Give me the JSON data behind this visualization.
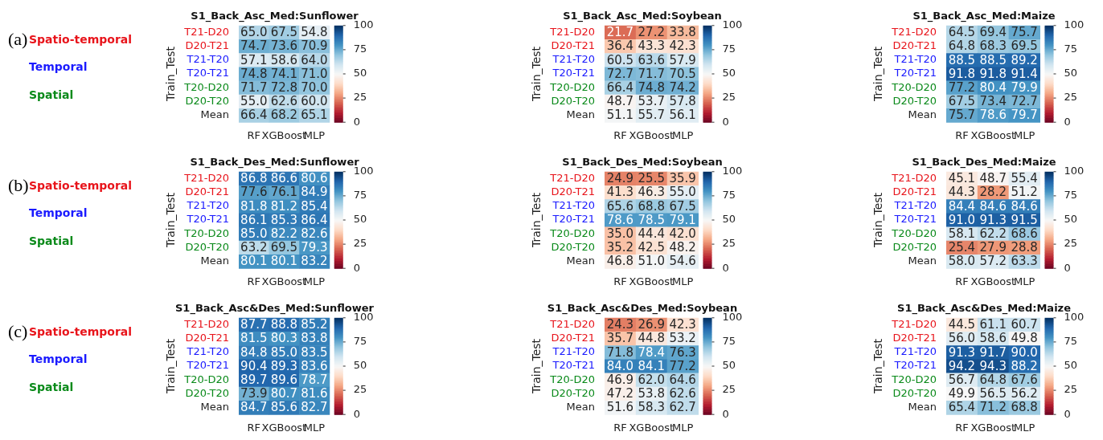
{
  "chart_data": [
    {
      "type": "heatmap",
      "title": "S1_Back_Asc_Med:Sunflower",
      "ylabel": "Train_Test",
      "annotations": [
        "(a)",
        "Spatio-temporal",
        "Temporal",
        "Spatial"
      ],
      "categories": [
        "RF",
        "XGBoost",
        "MLP"
      ],
      "y_categories": [
        "T21-D20",
        "D20-T21",
        "T21-T20",
        "T20-T21",
        "T20-D20",
        "D20-T20",
        "Mean"
      ],
      "clim": [
        0,
        100
      ],
      "cticks": [
        0,
        25,
        50,
        75,
        100
      ],
      "cells": [
        [
          65.0,
          67.5,
          54.8
        ],
        [
          74.7,
          73.6,
          70.9
        ],
        [
          57.1,
          58.6,
          64.0
        ],
        [
          74.8,
          74.1,
          71.0
        ],
        [
          71.7,
          72.8,
          70.0
        ],
        [
          55.0,
          62.6,
          60.0
        ],
        [
          66.4,
          68.2,
          65.1
        ]
      ],
      "cell_labels": [
        [
          "65.0",
          "67.5",
          "54.8"
        ],
        [
          "74.7",
          "73.6",
          "70.9"
        ],
        [
          "57.1",
          "58.6",
          "64.0"
        ],
        [
          "74.8",
          "74.1",
          "71.0"
        ],
        [
          "71.7",
          "72.8",
          "70.0"
        ],
        [
          "55.0",
          "62.6",
          "60.0"
        ],
        [
          "66.4",
          "68.2",
          "65.1"
        ]
      ]
    },
    {
      "type": "heatmap",
      "title": "S1_Back_Asc_Med:Soybean",
      "ylabel": "Train_Test",
      "categories": [
        "RF",
        "XGBoost",
        "MLP"
      ],
      "y_categories": [
        "T21-D20",
        "D20-T21",
        "T21-T20",
        "T20-T21",
        "T20-D20",
        "D20-T20",
        "Mean"
      ],
      "clim": [
        0,
        100
      ],
      "cticks": [
        0,
        25,
        50,
        75,
        100
      ],
      "cells": [
        [
          21.7,
          27.2,
          33.8
        ],
        [
          36.4,
          43.3,
          42.3
        ],
        [
          60.5,
          63.6,
          57.9
        ],
        [
          72.7,
          71.7,
          70.5
        ],
        [
          66.4,
          74.8,
          74.2
        ],
        [
          48.7,
          53.7,
          57.8
        ],
        [
          51.1,
          55.7,
          56.1
        ]
      ],
      "cell_labels": [
        [
          "21.7",
          "27.2",
          "33.8"
        ],
        [
          "36.4",
          "43.3",
          "42.3"
        ],
        [
          "60.5",
          "63.6",
          "57.9"
        ],
        [
          "72.7",
          "71.7",
          "70.5"
        ],
        [
          "66.4",
          "74.8",
          "74.2"
        ],
        [
          "48.7",
          "53.7",
          "57.8"
        ],
        [
          "51.1",
          "55.7",
          "56.1"
        ]
      ]
    },
    {
      "type": "heatmap",
      "title": "S1_Back_Asc_Med:Maize",
      "ylabel": "Train_Test",
      "categories": [
        "RF",
        "XGBoost",
        "MLP"
      ],
      "y_categories": [
        "T21-D20",
        "D20-T21",
        "T21-T20",
        "T20-T21",
        "T20-D20",
        "D20-T20",
        "Mean"
      ],
      "clim": [
        0,
        100
      ],
      "cticks": [
        0,
        25,
        50,
        75,
        100
      ],
      "cells": [
        [
          64.5,
          69.4,
          75.7
        ],
        [
          64.8,
          68.3,
          69.5
        ],
        [
          88.5,
          88.5,
          89.2
        ],
        [
          91.8,
          91.8,
          91.4
        ],
        [
          77.2,
          80.4,
          79.9
        ],
        [
          67.5,
          73.4,
          72.7
        ],
        [
          75.7,
          78.6,
          79.7
        ]
      ],
      "cell_labels": [
        [
          "64.5",
          "69.4",
          "75.7"
        ],
        [
          "64.8",
          "68.3",
          "69.5"
        ],
        [
          "88.5",
          "88.5",
          "89.2"
        ],
        [
          "91.8",
          "91.8",
          "91.4"
        ],
        [
          "77.2",
          "80.4",
          "79.9"
        ],
        [
          "67.5",
          "73.4",
          "72.7"
        ],
        [
          "75.7",
          "78.6",
          "79.7"
        ]
      ]
    },
    {
      "type": "heatmap",
      "title": "S1_Back_Des_Med:Sunflower",
      "ylabel": "Train_Test",
      "annotations": [
        "(b)",
        "Spatio-temporal",
        "Temporal",
        "Spatial"
      ],
      "categories": [
        "RF",
        "XGBoost",
        "MLP"
      ],
      "y_categories": [
        "T21-D20",
        "D20-T21",
        "T21-T20",
        "T20-T21",
        "T20-D20",
        "D20-T20",
        "Mean"
      ],
      "clim": [
        0,
        100
      ],
      "cticks": [
        0,
        25,
        50,
        75,
        100
      ],
      "cells": [
        [
          86.8,
          86.6,
          80.6
        ],
        [
          77.6,
          76.1,
          84.9
        ],
        [
          81.8,
          81.2,
          85.4
        ],
        [
          86.1,
          85.3,
          86.4
        ],
        [
          85.0,
          82.2,
          82.6
        ],
        [
          63.2,
          69.5,
          79.3
        ],
        [
          80.1,
          80.1,
          83.2
        ]
      ],
      "cell_labels": [
        [
          "86.8",
          "86.6",
          "80.6"
        ],
        [
          "77.6",
          "76.1",
          "84.9"
        ],
        [
          "81.8",
          "81.2",
          "85.4"
        ],
        [
          "86.1",
          "85.3",
          "86.4"
        ],
        [
          "85.0",
          "82.2",
          "82.6"
        ],
        [
          "63.2",
          "69.5",
          "79.3"
        ],
        [
          "80.1",
          "80.1",
          "83.2"
        ]
      ]
    },
    {
      "type": "heatmap",
      "title": "S1_Back_Des_Med:Soybean",
      "ylabel": "Train_Test",
      "categories": [
        "RF",
        "XGBoost",
        "MLP"
      ],
      "y_categories": [
        "T21-D20",
        "D20-T21",
        "T21-T20",
        "T20-T21",
        "T20-D20",
        "D20-T20",
        "Mean"
      ],
      "clim": [
        0,
        100
      ],
      "cticks": [
        0,
        25,
        50,
        75,
        100
      ],
      "cells": [
        [
          24.9,
          25.5,
          35.9
        ],
        [
          41.3,
          46.3,
          55.0
        ],
        [
          65.6,
          68.8,
          67.5
        ],
        [
          78.6,
          78.5,
          79.1
        ],
        [
          35.0,
          44.4,
          42.0
        ],
        [
          35.2,
          42.5,
          48.2
        ],
        [
          46.8,
          51.0,
          54.6
        ]
      ],
      "cell_labels": [
        [
          "24.9",
          "25.5",
          "35.9"
        ],
        [
          "41.3",
          "46.3",
          "55.0"
        ],
        [
          "65.6",
          "68.8",
          "67.5"
        ],
        [
          "78.6",
          "78.5",
          "79.1"
        ],
        [
          "35.0",
          "44.4",
          "42.0"
        ],
        [
          "35.2",
          "42.5",
          "48.2"
        ],
        [
          "46.8",
          "51.0",
          "54.6"
        ]
      ]
    },
    {
      "type": "heatmap",
      "title": "S1_Back_Des_Med:Maize",
      "ylabel": "Train_Test",
      "categories": [
        "RF",
        "XGBoost",
        "MLP"
      ],
      "y_categories": [
        "T21-D20",
        "D20-T21",
        "T21-T20",
        "T20-T21",
        "T20-D20",
        "D20-T20",
        "Mean"
      ],
      "clim": [
        0,
        100
      ],
      "cticks": [
        0,
        25,
        50,
        75,
        100
      ],
      "cells": [
        [
          45.1,
          48.7,
          55.4
        ],
        [
          44.3,
          28.2,
          51.2
        ],
        [
          84.4,
          84.6,
          84.6
        ],
        [
          91.0,
          91.3,
          91.5
        ],
        [
          58.1,
          62.2,
          68.6
        ],
        [
          25.4,
          27.9,
          28.8
        ],
        [
          58.0,
          57.2,
          63.3
        ]
      ],
      "cell_labels": [
        [
          "45.1",
          "48.7",
          "55.4"
        ],
        [
          "44.3",
          "28.2",
          "51.2"
        ],
        [
          "84.4",
          "84.6",
          "84.6"
        ],
        [
          "91.0",
          "91.3",
          "91.5"
        ],
        [
          "58.1",
          "62.2",
          "68.6"
        ],
        [
          "25.4",
          "27.9",
          "28.8"
        ],
        [
          "58.0",
          "57.2",
          "63.3"
        ]
      ]
    },
    {
      "type": "heatmap",
      "title": "S1_Back_Asc&Des_Med:Sunflower",
      "ylabel": "Train_Test",
      "annotations": [
        "(c)",
        "Spatio-temporal",
        "Temporal",
        "Spatial"
      ],
      "categories": [
        "RF",
        "XGBoost",
        "MLP"
      ],
      "y_categories": [
        "T21-D20",
        "D20-T21",
        "T21-T20",
        "T20-T21",
        "T20-D20",
        "D20-T20",
        "Mean"
      ],
      "clim": [
        0,
        100
      ],
      "cticks": [
        0,
        25,
        50,
        75,
        100
      ],
      "cells": [
        [
          87.7,
          88.8,
          85.2
        ],
        [
          81.5,
          80.3,
          83.8
        ],
        [
          84.8,
          85.0,
          83.5
        ],
        [
          90.4,
          89.3,
          83.6
        ],
        [
          89.7,
          89.6,
          78.7
        ],
        [
          73.9,
          80.7,
          81.6
        ],
        [
          84.7,
          85.6,
          82.7
        ]
      ],
      "cell_labels": [
        [
          "87.7",
          "88.8",
          "85.2"
        ],
        [
          "81.5",
          "80.3",
          "83.8"
        ],
        [
          "84.8",
          "85.0",
          "83.5"
        ],
        [
          "90.4",
          "89.3",
          "83.6"
        ],
        [
          "89.7",
          "89.6",
          "78.7"
        ],
        [
          "73.9",
          "80.7",
          "81.6"
        ],
        [
          "84.7",
          "85.6",
          "82.7"
        ]
      ]
    },
    {
      "type": "heatmap",
      "title": "S1_Back_Asc&Des_Med:Soybean",
      "ylabel": "Train_Test",
      "categories": [
        "RF",
        "XGBoost",
        "MLP"
      ],
      "y_categories": [
        "T21-D20",
        "D20-T21",
        "T21-T20",
        "T20-T21",
        "T20-D20",
        "D20-T20",
        "Mean"
      ],
      "clim": [
        0,
        100
      ],
      "cticks": [
        0,
        25,
        50,
        75,
        100
      ],
      "cells": [
        [
          24.3,
          26.9,
          42.3
        ],
        [
          35.7,
          44.8,
          53.2
        ],
        [
          71.8,
          78.4,
          76.3
        ],
        [
          84.0,
          84.1,
          77.2
        ],
        [
          46.9,
          62.0,
          64.6
        ],
        [
          47.2,
          53.8,
          62.6
        ],
        [
          51.6,
          58.3,
          62.7
        ]
      ],
      "cell_labels": [
        [
          "24.3",
          "26.9",
          "42.3"
        ],
        [
          "35.7",
          "44.8",
          "53.2"
        ],
        [
          "71.8",
          "78.4",
          "76.3"
        ],
        [
          "84.0",
          "84.1",
          "77.2"
        ],
        [
          "46.9",
          "62.0",
          "64.6"
        ],
        [
          "47.2",
          "53.8",
          "62.6"
        ],
        [
          "51.6",
          "58.3",
          "62.7"
        ]
      ]
    },
    {
      "type": "heatmap",
      "title": "S1_Back_Asc&Des_Med:Maize",
      "ylabel": "Train_Test",
      "categories": [
        "RF",
        "XGBoost",
        "MLP"
      ],
      "y_categories": [
        "T21-D20",
        "D20-T21",
        "T21-T20",
        "T20-T21",
        "T20-D20",
        "D20-T20",
        "Mean"
      ],
      "clim": [
        0,
        100
      ],
      "cticks": [
        0,
        25,
        50,
        75,
        100
      ],
      "cells": [
        [
          44.5,
          61.1,
          60.7
        ],
        [
          56.0,
          58.6,
          49.8
        ],
        [
          91.3,
          91.7,
          90.0
        ],
        [
          94.2,
          94.3,
          88.2
        ],
        [
          56.7,
          64.8,
          67.6
        ],
        [
          49.9,
          56.5,
          56.2
        ],
        [
          65.4,
          71.2,
          68.8
        ]
      ],
      "cell_labels": [
        [
          "44.5",
          "61.1",
          "60.7"
        ],
        [
          "56.0",
          "58.6",
          "49.8"
        ],
        [
          "91.3",
          "91.7",
          "90.0"
        ],
        [
          "94.2",
          "94.3",
          "88.2"
        ],
        [
          "56.7",
          "64.8",
          "67.6"
        ],
        [
          "49.9",
          "56.5",
          "56.2"
        ],
        [
          "65.4",
          "71.2",
          "68.8"
        ]
      ]
    }
  ]
}
